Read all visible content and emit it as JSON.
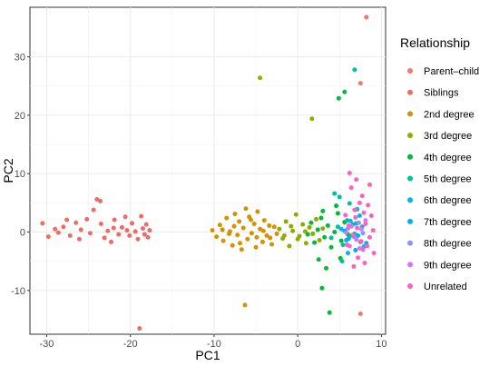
{
  "chart_data": {
    "type": "scatter",
    "xlabel": "PC1",
    "ylabel": "PC2",
    "xlim": [
      -32,
      10.5
    ],
    "ylim": [
      -17.5,
      38.5
    ],
    "xticks": [
      -30,
      -20,
      -10,
      0,
      10
    ],
    "yticks": [
      -10,
      0,
      10,
      20,
      30
    ],
    "grid": true,
    "legend_title": "Relationship",
    "legend_position": "right",
    "series": [
      {
        "name": "Parent–child",
        "color": "#F8766D",
        "points": [
          [
            8.2,
            36.8
          ],
          [
            7.5,
            25.5
          ],
          [
            7.5,
            -14.0
          ]
        ]
      },
      {
        "name": "Siblings",
        "color": "#F06B64",
        "points": [
          [
            -30.5,
            1.5
          ],
          [
            -29.8,
            -0.8
          ],
          [
            -28.6,
            -0.1
          ],
          [
            -28.0,
            0.9
          ],
          [
            -27.2,
            -0.6
          ],
          [
            -26.5,
            1.6
          ],
          [
            -25.9,
            0.4
          ],
          [
            -25.2,
            2.2
          ],
          [
            -24.8,
            -0.2
          ],
          [
            -24.4,
            3.8
          ],
          [
            -24.0,
            5.6
          ],
          [
            -23.6,
            5.3
          ],
          [
            -23.5,
            1.4
          ],
          [
            -23.1,
            -1.0
          ],
          [
            -22.7,
            0.2
          ],
          [
            -22.3,
            -1.7
          ],
          [
            -21.9,
            2.1
          ],
          [
            -21.4,
            -0.4
          ],
          [
            -21.0,
            0.8
          ],
          [
            -20.6,
            2.6
          ],
          [
            -20.1,
            -0.6
          ],
          [
            -19.8,
            1.5
          ],
          [
            -19.4,
            0.1
          ],
          [
            -19.1,
            -1.2
          ],
          [
            -18.9,
            -16.5
          ],
          [
            -18.7,
            2.7
          ],
          [
            -18.5,
            0.6
          ],
          [
            -18.3,
            -0.4
          ],
          [
            -18.1,
            1.3
          ],
          [
            -17.9,
            -0.9
          ],
          [
            -17.7,
            0.3
          ],
          [
            -29.0,
            0.5
          ],
          [
            -26.1,
            -1.2
          ],
          [
            -22.0,
            0.7
          ],
          [
            -20.4,
            0.3
          ],
          [
            -27.6,
            2.1
          ]
        ]
      },
      {
        "name": "2nd degree",
        "color": "#D39200",
        "points": [
          [
            -10.2,
            0.3
          ],
          [
            -9.7,
            -0.8
          ],
          [
            -9.3,
            1.2
          ],
          [
            -8.9,
            -1.5
          ],
          [
            -8.5,
            2.4
          ],
          [
            -8.1,
            0.1
          ],
          [
            -7.8,
            -2.3
          ],
          [
            -7.5,
            3.1
          ],
          [
            -7.2,
            -0.5
          ],
          [
            -7.0,
            1.8
          ],
          [
            -6.7,
            -3.0
          ],
          [
            -6.5,
            0.7
          ],
          [
            -6.2,
            4.0
          ],
          [
            -6.0,
            -1.2
          ],
          [
            -5.8,
            2.6
          ],
          [
            -5.5,
            -0.2
          ],
          [
            -5.2,
            1.4
          ],
          [
            -5.0,
            -2.6
          ],
          [
            -4.8,
            3.5
          ],
          [
            -4.5,
            0.5
          ],
          [
            -4.2,
            -1.7
          ],
          [
            -4.0,
            2.0
          ],
          [
            -3.7,
            -0.6
          ],
          [
            -3.4,
            1.1
          ],
          [
            -3.1,
            -2.1
          ],
          [
            -2.8,
            0.9
          ],
          [
            -2.5,
            -0.3
          ],
          [
            -6.3,
            -12.5
          ],
          [
            -9.0,
            0.4
          ],
          [
            -8.2,
            -0.3
          ],
          [
            -7.6,
            1.0
          ],
          [
            -6.9,
            -1.9
          ],
          [
            -5.6,
            2.1
          ],
          [
            -4.9,
            -0.9
          ],
          [
            -4.1,
            0.2
          ],
          [
            -3.3,
            -1.0
          ]
        ]
      },
      {
        "name": "3rd degree",
        "color": "#93AA00",
        "points": [
          [
            -4.5,
            26.4
          ],
          [
            1.7,
            19.4
          ],
          [
            -2.2,
            0.5
          ],
          [
            -1.8,
            -1.1
          ],
          [
            -1.4,
            1.8
          ],
          [
            -1.0,
            -2.4
          ],
          [
            -0.6,
            0.2
          ],
          [
            -0.2,
            3.0
          ],
          [
            0.2,
            -0.7
          ],
          [
            0.6,
            1.3
          ],
          [
            1.0,
            -1.9
          ],
          [
            1.4,
            0.8
          ],
          [
            1.8,
            -0.3
          ],
          [
            2.2,
            2.2
          ],
          [
            2.6,
            -1.4
          ],
          [
            3.0,
            0.6
          ],
          [
            -1.6,
            -0.6
          ],
          [
            -0.8,
            1.0
          ],
          [
            0.0,
            -1.2
          ],
          [
            0.9,
            0.1
          ]
        ]
      },
      {
        "name": "4th degree",
        "color": "#00BA38",
        "points": [
          [
            4.9,
            22.9
          ],
          [
            5.6,
            24.0
          ],
          [
            2.9,
            -9.6
          ],
          [
            3.8,
            -13.8
          ],
          [
            1.2,
            -0.4
          ],
          [
            1.6,
            1.6
          ],
          [
            2.0,
            -1.8
          ],
          [
            2.4,
            0.4
          ],
          [
            2.8,
            2.4
          ],
          [
            3.2,
            -0.9
          ],
          [
            3.6,
            1.1
          ],
          [
            4.0,
            -2.6
          ],
          [
            4.4,
            0.0
          ],
          [
            4.8,
            3.2
          ],
          [
            5.2,
            -1.5
          ],
          [
            5.6,
            1.7
          ],
          [
            6.0,
            -0.4
          ],
          [
            2.5,
            -4.7
          ],
          [
            3.4,
            -6.2
          ],
          [
            5.1,
            -4.5
          ],
          [
            4.6,
            4.5
          ],
          [
            3.0,
            3.6
          ]
        ]
      },
      {
        "name": "5th degree",
        "color": "#00C19F",
        "points": [
          [
            6.8,
            27.8
          ],
          [
            4.4,
            6.6
          ],
          [
            5.0,
            6.0
          ],
          [
            4.0,
            -1.0
          ],
          [
            4.8,
            0.9
          ],
          [
            5.4,
            -2.2
          ],
          [
            5.9,
            2.0
          ],
          [
            6.4,
            -0.6
          ],
          [
            7.0,
            1.5
          ],
          [
            7.5,
            -1.7
          ],
          [
            6.2,
            4.9
          ],
          [
            5.3,
            -5.0
          ]
        ]
      },
      {
        "name": "6th degree",
        "color": "#00B9E3",
        "points": [
          [
            5.2,
            0.5
          ],
          [
            5.8,
            -1.4
          ],
          [
            6.3,
            1.9
          ],
          [
            6.8,
            -0.3
          ],
          [
            7.4,
            2.8
          ],
          [
            7.9,
            -2.5
          ],
          [
            6.0,
            -3.6
          ],
          [
            7.1,
            3.9
          ]
        ]
      },
      {
        "name": "7th degree",
        "color": "#00ADFA",
        "points": [
          [
            5.6,
            0.2
          ],
          [
            6.1,
            -1.1
          ],
          [
            6.6,
            1.3
          ],
          [
            7.2,
            -0.6
          ],
          [
            7.7,
            0.9
          ],
          [
            8.2,
            -1.9
          ],
          [
            6.9,
            -3.1
          ]
        ]
      },
      {
        "name": "8th degree",
        "color": "#8B93FF",
        "points": [
          [
            6.0,
            0.6
          ],
          [
            6.7,
            -0.8
          ],
          [
            7.3,
            1.6
          ],
          [
            7.8,
            -0.2
          ]
        ]
      },
      {
        "name": "9th degree",
        "color": "#DB72FB",
        "points": [
          [
            5.8,
            -0.1
          ],
          [
            6.4,
            1.0
          ],
          [
            7.0,
            -1.3
          ],
          [
            7.6,
            0.5
          ],
          [
            8.1,
            2.0
          ],
          [
            6.2,
            -2.4
          ],
          [
            7.4,
            -2.8
          ]
        ]
      },
      {
        "name": "Unrelated",
        "color": "#FF61C3",
        "points": [
          [
            6.2,
            10.1
          ],
          [
            7.0,
            9.0
          ],
          [
            6.4,
            7.6
          ],
          [
            7.7,
            6.2
          ],
          [
            8.6,
            8.1
          ],
          [
            7.4,
            5.0
          ],
          [
            8.4,
            4.6
          ],
          [
            6.8,
            3.8
          ],
          [
            8.8,
            2.8
          ],
          [
            6.1,
            1.1
          ],
          [
            6.6,
            -0.5
          ],
          [
            7.1,
            0.7
          ],
          [
            7.6,
            -1.6
          ],
          [
            8.1,
            1.4
          ],
          [
            8.6,
            -0.9
          ],
          [
            9.0,
            0.3
          ],
          [
            5.9,
            -2.2
          ],
          [
            6.9,
            2.5
          ],
          [
            7.8,
            -3.0
          ],
          [
            8.3,
            -2.4
          ],
          [
            9.1,
            -3.6
          ],
          [
            7.2,
            -4.4
          ],
          [
            8.0,
            -5.3
          ],
          [
            6.7,
            -5.9
          ],
          [
            5.7,
            2.9
          ],
          [
            7.9,
            3.3
          ]
        ]
      }
    ]
  }
}
